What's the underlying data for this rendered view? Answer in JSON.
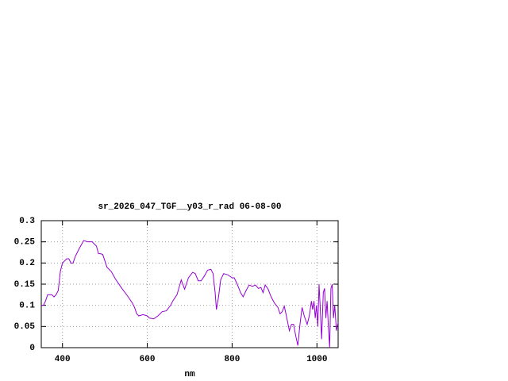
{
  "chart_data": {
    "type": "line",
    "title": "sr_2026_047_TGF__y03_r_rad 06-08-00",
    "x_label": "nm",
    "xlim": [
      350,
      1050
    ],
    "xticks": [
      400,
      600,
      800,
      1000
    ],
    "ylim": [
      0,
      0.3
    ],
    "yticks": [
      0,
      0.05,
      0.1,
      0.15,
      0.2,
      0.25,
      0.3
    ],
    "grid": true,
    "series": [
      {
        "color": "#9400d3",
        "x": [
          350,
          355,
          360,
          365,
          370,
          375,
          380,
          385,
          390,
          395,
          400,
          410,
          415,
          420,
          425,
          430,
          440,
          450,
          460,
          470,
          480,
          485,
          490,
          495,
          500,
          505,
          515,
          525,
          540,
          555,
          565,
          570,
          575,
          580,
          590,
          600,
          605,
          615,
          625,
          635,
          645,
          655,
          660,
          670,
          680,
          688,
          697,
          707,
          713,
          720,
          727,
          735,
          742,
          750,
          755,
          760,
          763,
          768,
          773,
          780,
          790,
          800,
          805,
          812,
          820,
          826,
          833,
          840,
          848,
          855,
          862,
          868,
          873,
          878,
          885,
          892,
          900,
          908,
          913,
          918,
          923,
          928,
          935,
          940,
          945,
          950,
          955,
          960,
          965,
          970,
          977,
          982,
          987,
          990,
          993,
          996,
          999,
          1002,
          1005,
          1008,
          1011,
          1015,
          1018,
          1021,
          1024,
          1027,
          1030,
          1033,
          1036,
          1039,
          1042,
          1046,
          1050
        ],
        "values": [
          0.1,
          0.1,
          0.11,
          0.125,
          0.125,
          0.125,
          0.12,
          0.125,
          0.135,
          0.18,
          0.2,
          0.21,
          0.21,
          0.2,
          0.2,
          0.215,
          0.235,
          0.253,
          0.25,
          0.25,
          0.24,
          0.222,
          0.222,
          0.22,
          0.205,
          0.19,
          0.18,
          0.162,
          0.14,
          0.12,
          0.105,
          0.095,
          0.08,
          0.075,
          0.078,
          0.075,
          0.07,
          0.068,
          0.075,
          0.085,
          0.087,
          0.1,
          0.11,
          0.125,
          0.16,
          0.138,
          0.165,
          0.178,
          0.175,
          0.158,
          0.158,
          0.17,
          0.183,
          0.185,
          0.175,
          0.13,
          0.09,
          0.12,
          0.16,
          0.175,
          0.172,
          0.165,
          0.165,
          0.15,
          0.13,
          0.12,
          0.135,
          0.148,
          0.145,
          0.148,
          0.14,
          0.142,
          0.13,
          0.148,
          0.138,
          0.12,
          0.105,
          0.095,
          0.08,
          0.085,
          0.098,
          0.075,
          0.04,
          0.055,
          0.055,
          0.028,
          0.005,
          0.055,
          0.095,
          0.075,
          0.055,
          0.075,
          0.11,
          0.09,
          0.11,
          0.07,
          0.1,
          0.05,
          0.15,
          0.09,
          0.02,
          0.13,
          0.14,
          0.07,
          0.11,
          0.05,
          0.0,
          0.14,
          0.15,
          0.07,
          0.1,
          0.04,
          0.06
        ]
      }
    ]
  }
}
